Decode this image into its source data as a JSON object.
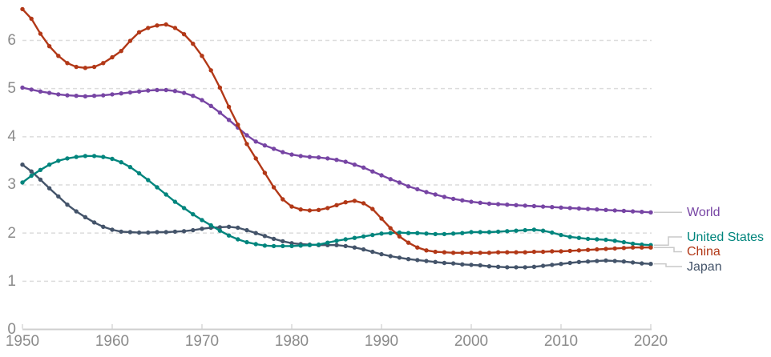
{
  "chart_data": {
    "type": "line",
    "xlim": [
      1950,
      2020
    ],
    "ylim": [
      0,
      6.8
    ],
    "grid": "horizontal-dashed",
    "legend_position": "right-of-line-ends",
    "x_ticks": [
      "1950",
      "1960",
      "1970",
      "1980",
      "1990",
      "2000",
      "2010",
      "2020"
    ],
    "y_ticks": [
      "0",
      "1",
      "2",
      "3",
      "4",
      "5",
      "6"
    ],
    "x": [
      1950,
      1951,
      1952,
      1953,
      1954,
      1955,
      1956,
      1957,
      1958,
      1959,
      1960,
      1961,
      1962,
      1963,
      1964,
      1965,
      1966,
      1967,
      1968,
      1969,
      1970,
      1971,
      1972,
      1973,
      1974,
      1975,
      1976,
      1977,
      1978,
      1979,
      1980,
      1981,
      1982,
      1983,
      1984,
      1985,
      1986,
      1987,
      1988,
      1989,
      1990,
      1991,
      1992,
      1993,
      1994,
      1995,
      1996,
      1997,
      1998,
      1999,
      2000,
      2001,
      2002,
      2003,
      2004,
      2005,
      2006,
      2007,
      2008,
      2009,
      2010,
      2011,
      2012,
      2013,
      2014,
      2015,
      2016,
      2017,
      2018,
      2019,
      2020
    ],
    "series": [
      {
        "name": "World",
        "color": "#7745a4",
        "values": [
          5.02,
          4.98,
          4.94,
          4.91,
          4.88,
          4.86,
          4.85,
          4.84,
          4.85,
          4.86,
          4.88,
          4.9,
          4.92,
          4.94,
          4.96,
          4.97,
          4.97,
          4.95,
          4.91,
          4.85,
          4.76,
          4.64,
          4.5,
          4.35,
          4.19,
          4.03,
          3.9,
          3.82,
          3.75,
          3.68,
          3.63,
          3.6,
          3.58,
          3.57,
          3.55,
          3.52,
          3.48,
          3.42,
          3.36,
          3.28,
          3.2,
          3.12,
          3.05,
          2.97,
          2.91,
          2.85,
          2.8,
          2.75,
          2.71,
          2.68,
          2.65,
          2.63,
          2.61,
          2.6,
          2.59,
          2.58,
          2.57,
          2.56,
          2.55,
          2.54,
          2.53,
          2.52,
          2.51,
          2.5,
          2.49,
          2.48,
          2.47,
          2.46,
          2.45,
          2.44,
          2.43
        ]
      },
      {
        "name": "United States",
        "color": "#00857d",
        "values": [
          3.05,
          3.19,
          3.31,
          3.42,
          3.5,
          3.55,
          3.58,
          3.6,
          3.6,
          3.58,
          3.54,
          3.47,
          3.37,
          3.24,
          3.1,
          2.95,
          2.8,
          2.65,
          2.52,
          2.39,
          2.27,
          2.16,
          2.05,
          1.95,
          1.87,
          1.81,
          1.77,
          1.74,
          1.73,
          1.73,
          1.73,
          1.74,
          1.75,
          1.76,
          1.8,
          1.84,
          1.87,
          1.9,
          1.93,
          1.96,
          1.99,
          2.0,
          2.01,
          2.0,
          2.0,
          1.99,
          1.98,
          1.98,
          1.99,
          2.0,
          2.02,
          2.02,
          2.02,
          2.03,
          2.04,
          2.05,
          2.06,
          2.07,
          2.05,
          2.01,
          1.96,
          1.92,
          1.9,
          1.88,
          1.87,
          1.86,
          1.84,
          1.81,
          1.78,
          1.76,
          1.75
        ]
      },
      {
        "name": "China",
        "color": "#b23817",
        "values": [
          6.65,
          6.45,
          6.14,
          5.88,
          5.68,
          5.53,
          5.45,
          5.43,
          5.45,
          5.53,
          5.65,
          5.78,
          5.99,
          6.17,
          6.26,
          6.31,
          6.33,
          6.26,
          6.13,
          5.93,
          5.68,
          5.38,
          5.02,
          4.62,
          4.25,
          3.85,
          3.55,
          3.25,
          2.95,
          2.7,
          2.55,
          2.49,
          2.47,
          2.48,
          2.52,
          2.58,
          2.64,
          2.67,
          2.62,
          2.5,
          2.3,
          2.1,
          1.93,
          1.8,
          1.7,
          1.64,
          1.61,
          1.6,
          1.59,
          1.59,
          1.59,
          1.59,
          1.59,
          1.6,
          1.6,
          1.6,
          1.6,
          1.61,
          1.61,
          1.62,
          1.62,
          1.63,
          1.64,
          1.65,
          1.66,
          1.67,
          1.68,
          1.69,
          1.7,
          1.7,
          1.7
        ]
      },
      {
        "name": "Japan",
        "color": "#44546a",
        "values": [
          3.42,
          3.28,
          3.11,
          2.93,
          2.76,
          2.59,
          2.45,
          2.33,
          2.22,
          2.13,
          2.07,
          2.03,
          2.02,
          2.01,
          2.01,
          2.02,
          2.02,
          2.03,
          2.04,
          2.06,
          2.09,
          2.11,
          2.12,
          2.13,
          2.11,
          2.06,
          2.0,
          1.94,
          1.88,
          1.83,
          1.79,
          1.77,
          1.76,
          1.75,
          1.75,
          1.75,
          1.73,
          1.7,
          1.66,
          1.61,
          1.56,
          1.52,
          1.49,
          1.46,
          1.44,
          1.42,
          1.4,
          1.38,
          1.37,
          1.35,
          1.34,
          1.33,
          1.31,
          1.3,
          1.29,
          1.29,
          1.29,
          1.3,
          1.32,
          1.34,
          1.36,
          1.38,
          1.4,
          1.41,
          1.42,
          1.43,
          1.42,
          1.41,
          1.39,
          1.37,
          1.36
        ]
      }
    ],
    "style_colors": {
      "gridline": "#dcdcdc",
      "axis_line": "#cfcfcf",
      "axis_tick": "#d9d9d9",
      "tick_label": "#8b8b8b",
      "legend_connector": "#c9c9c9"
    }
  }
}
